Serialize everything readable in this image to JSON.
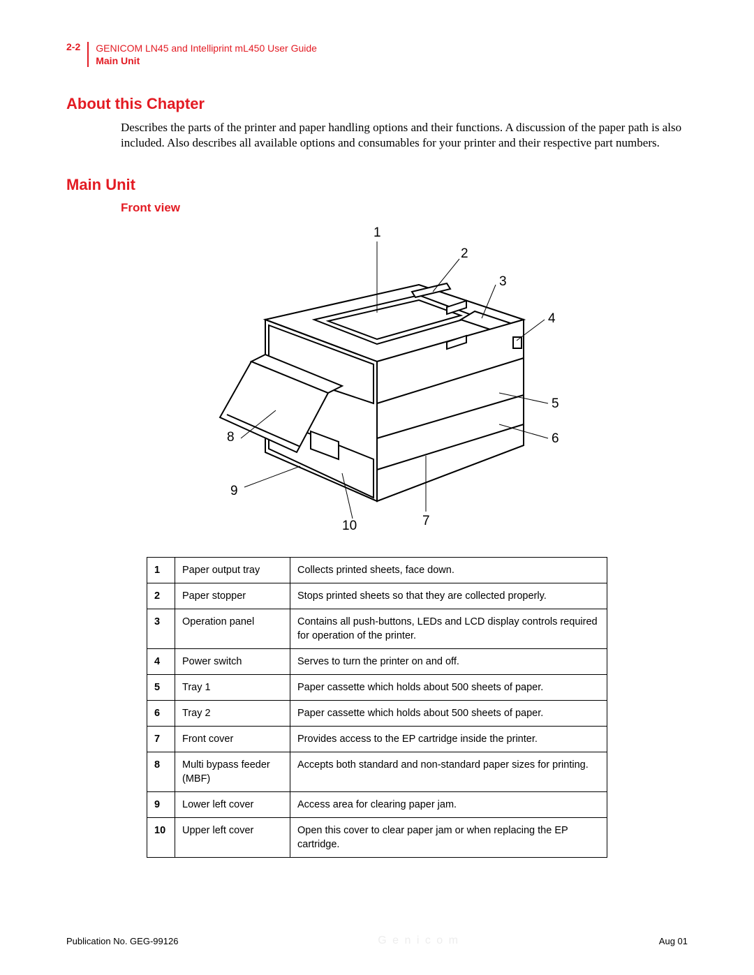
{
  "header": {
    "pagenum": "2-2",
    "title": "GENICOM LN45 and Intelliprint mL450 User Guide",
    "subtitle": "Main Unit"
  },
  "sections": {
    "about_heading": "About this Chapter",
    "about_body": "Describes the parts of the printer and paper handling options and their functions. A discussion of the paper path is also included. Also describes all available options and consumables for your printer and their respective part numbers.",
    "main_heading": "Main Unit",
    "front_view": "Front view"
  },
  "callouts": {
    "n1": "1",
    "n2": "2",
    "n3": "3",
    "n4": "4",
    "n5": "5",
    "n6": "6",
    "n7": "7",
    "n8": "8",
    "n9": "9",
    "n10": "10"
  },
  "table": {
    "rows": [
      {
        "num": "1",
        "name": "Paper output tray",
        "desc": "Collects printed sheets, face down."
      },
      {
        "num": "2",
        "name": "Paper stopper",
        "desc": "Stops printed sheets so that they are collected properly."
      },
      {
        "num": "3",
        "name": "Operation panel",
        "desc": "Contains all push-buttons, LEDs and LCD display controls required for operation of the printer."
      },
      {
        "num": "4",
        "name": "Power switch",
        "desc": "Serves to turn the printer on and off."
      },
      {
        "num": "5",
        "name": "Tray 1",
        "desc": "Paper cassette which holds about 500 sheets of paper."
      },
      {
        "num": "6",
        "name": "Tray 2",
        "desc": "Paper cassette which holds about 500 sheets of paper."
      },
      {
        "num": "7",
        "name": "Front cover",
        "desc": "Provides access to the EP cartridge inside the printer."
      },
      {
        "num": "8",
        "name": "Multi bypass feeder (MBF)",
        "desc": "Accepts both standard and non-standard paper sizes for printing."
      },
      {
        "num": "9",
        "name": "Lower left cover",
        "desc": "Access area for clearing paper jam."
      },
      {
        "num": "10",
        "name": "Upper left cover",
        "desc": "Open this cover to clear paper jam or when replacing the EP cartridge."
      }
    ]
  },
  "footer": {
    "pub": "Publication No. GEG-99126",
    "watermark": "G e n i c o m",
    "date": "Aug 01"
  }
}
